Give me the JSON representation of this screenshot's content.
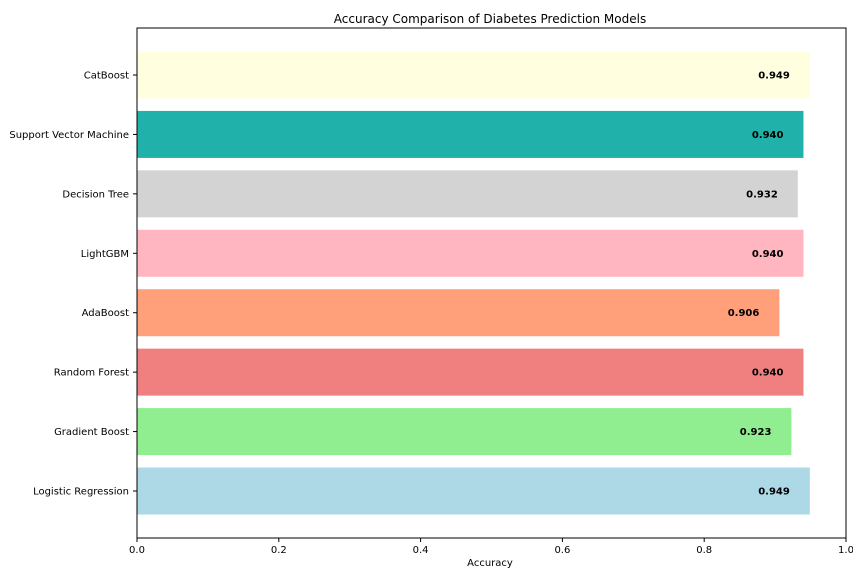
{
  "chart_data": {
    "type": "bar",
    "orientation": "horizontal",
    "title": "Accuracy Comparison of Diabetes Prediction Models",
    "xlabel": "Accuracy",
    "ylabel": "",
    "xlim": [
      0.0,
      1.0
    ],
    "xticks": [
      "0.0",
      "0.2",
      "0.4",
      "0.6",
      "0.8",
      "1.0"
    ],
    "grid": false,
    "categories": [
      "CatBoost",
      "Support Vector Machine",
      "Decision Tree",
      "LightGBM",
      "AdaBoost",
      "Random Forest",
      "Gradient Boost",
      "Logistic Regression"
    ],
    "values": [
      0.949,
      0.94,
      0.932,
      0.94,
      0.906,
      0.94,
      0.923,
      0.949
    ],
    "value_labels": [
      "0.949",
      "0.940",
      "0.932",
      "0.940",
      "0.906",
      "0.940",
      "0.923",
      "0.949"
    ],
    "colors": [
      "#FFFFE0",
      "#20B2AA",
      "#D3D3D3",
      "#FFB6C1",
      "#FFA07A",
      "#F08080",
      "#90EE90",
      "#ADD8E6"
    ]
  }
}
